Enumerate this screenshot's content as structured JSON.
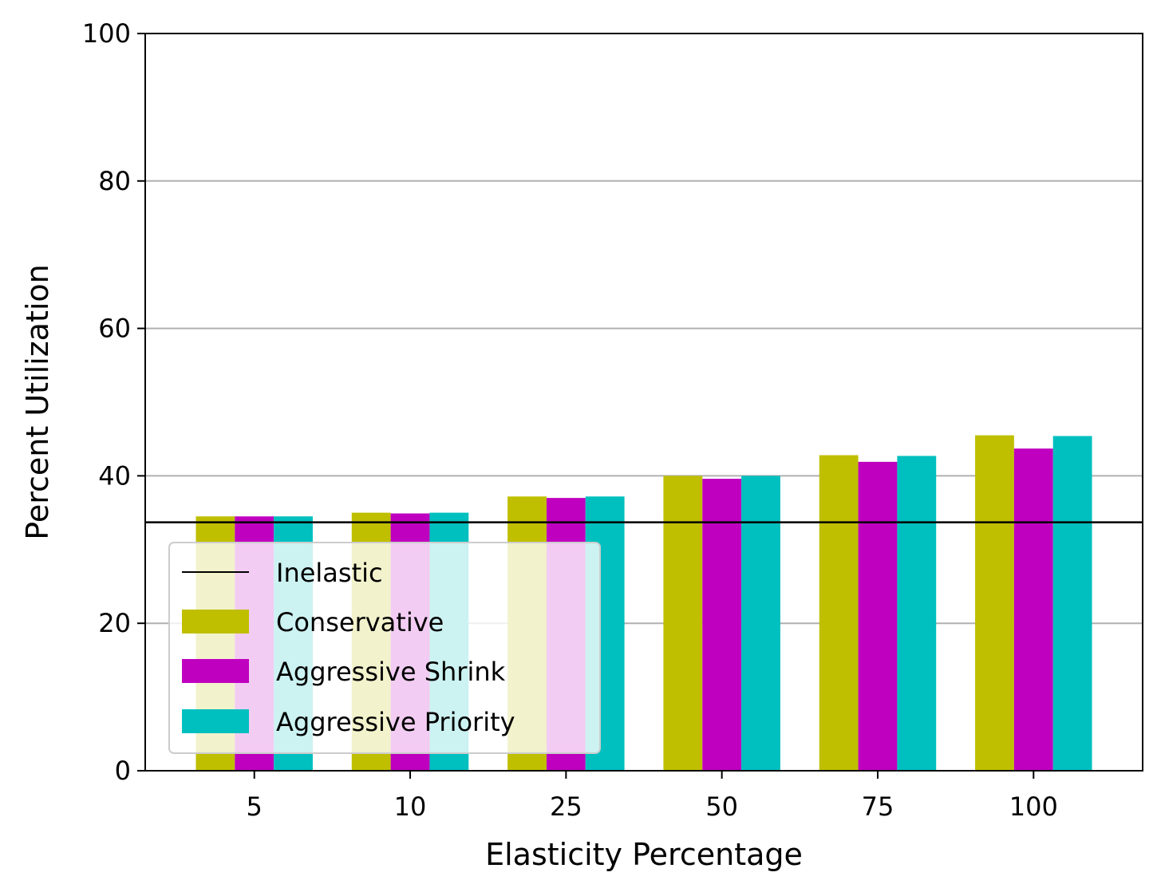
{
  "chart_data": {
    "type": "bar",
    "title": "",
    "xlabel": "Elasticity Percentage",
    "ylabel": "Percent Utilization",
    "categories": [
      "5",
      "10",
      "25",
      "50",
      "75",
      "100"
    ],
    "ylim": [
      0,
      100
    ],
    "yticks": [
      "0",
      "20",
      "40",
      "60",
      "80",
      "100"
    ],
    "grid": "y",
    "legend_position": "lower-left",
    "reference_line": {
      "name": "Inelastic",
      "value": 33.7,
      "color": "#000000"
    },
    "series": [
      {
        "name": "Conservative",
        "color": "#bfbf00",
        "values": [
          34.5,
          35.0,
          37.2,
          40.0,
          42.8,
          45.5
        ]
      },
      {
        "name": "Aggressive Shrink",
        "color": "#bf00bf",
        "values": [
          34.5,
          34.9,
          37.0,
          39.6,
          41.9,
          43.7
        ]
      },
      {
        "name": "Aggressive Priority",
        "color": "#00bfbf",
        "values": [
          34.5,
          35.0,
          37.2,
          40.0,
          42.7,
          45.4
        ]
      }
    ]
  }
}
